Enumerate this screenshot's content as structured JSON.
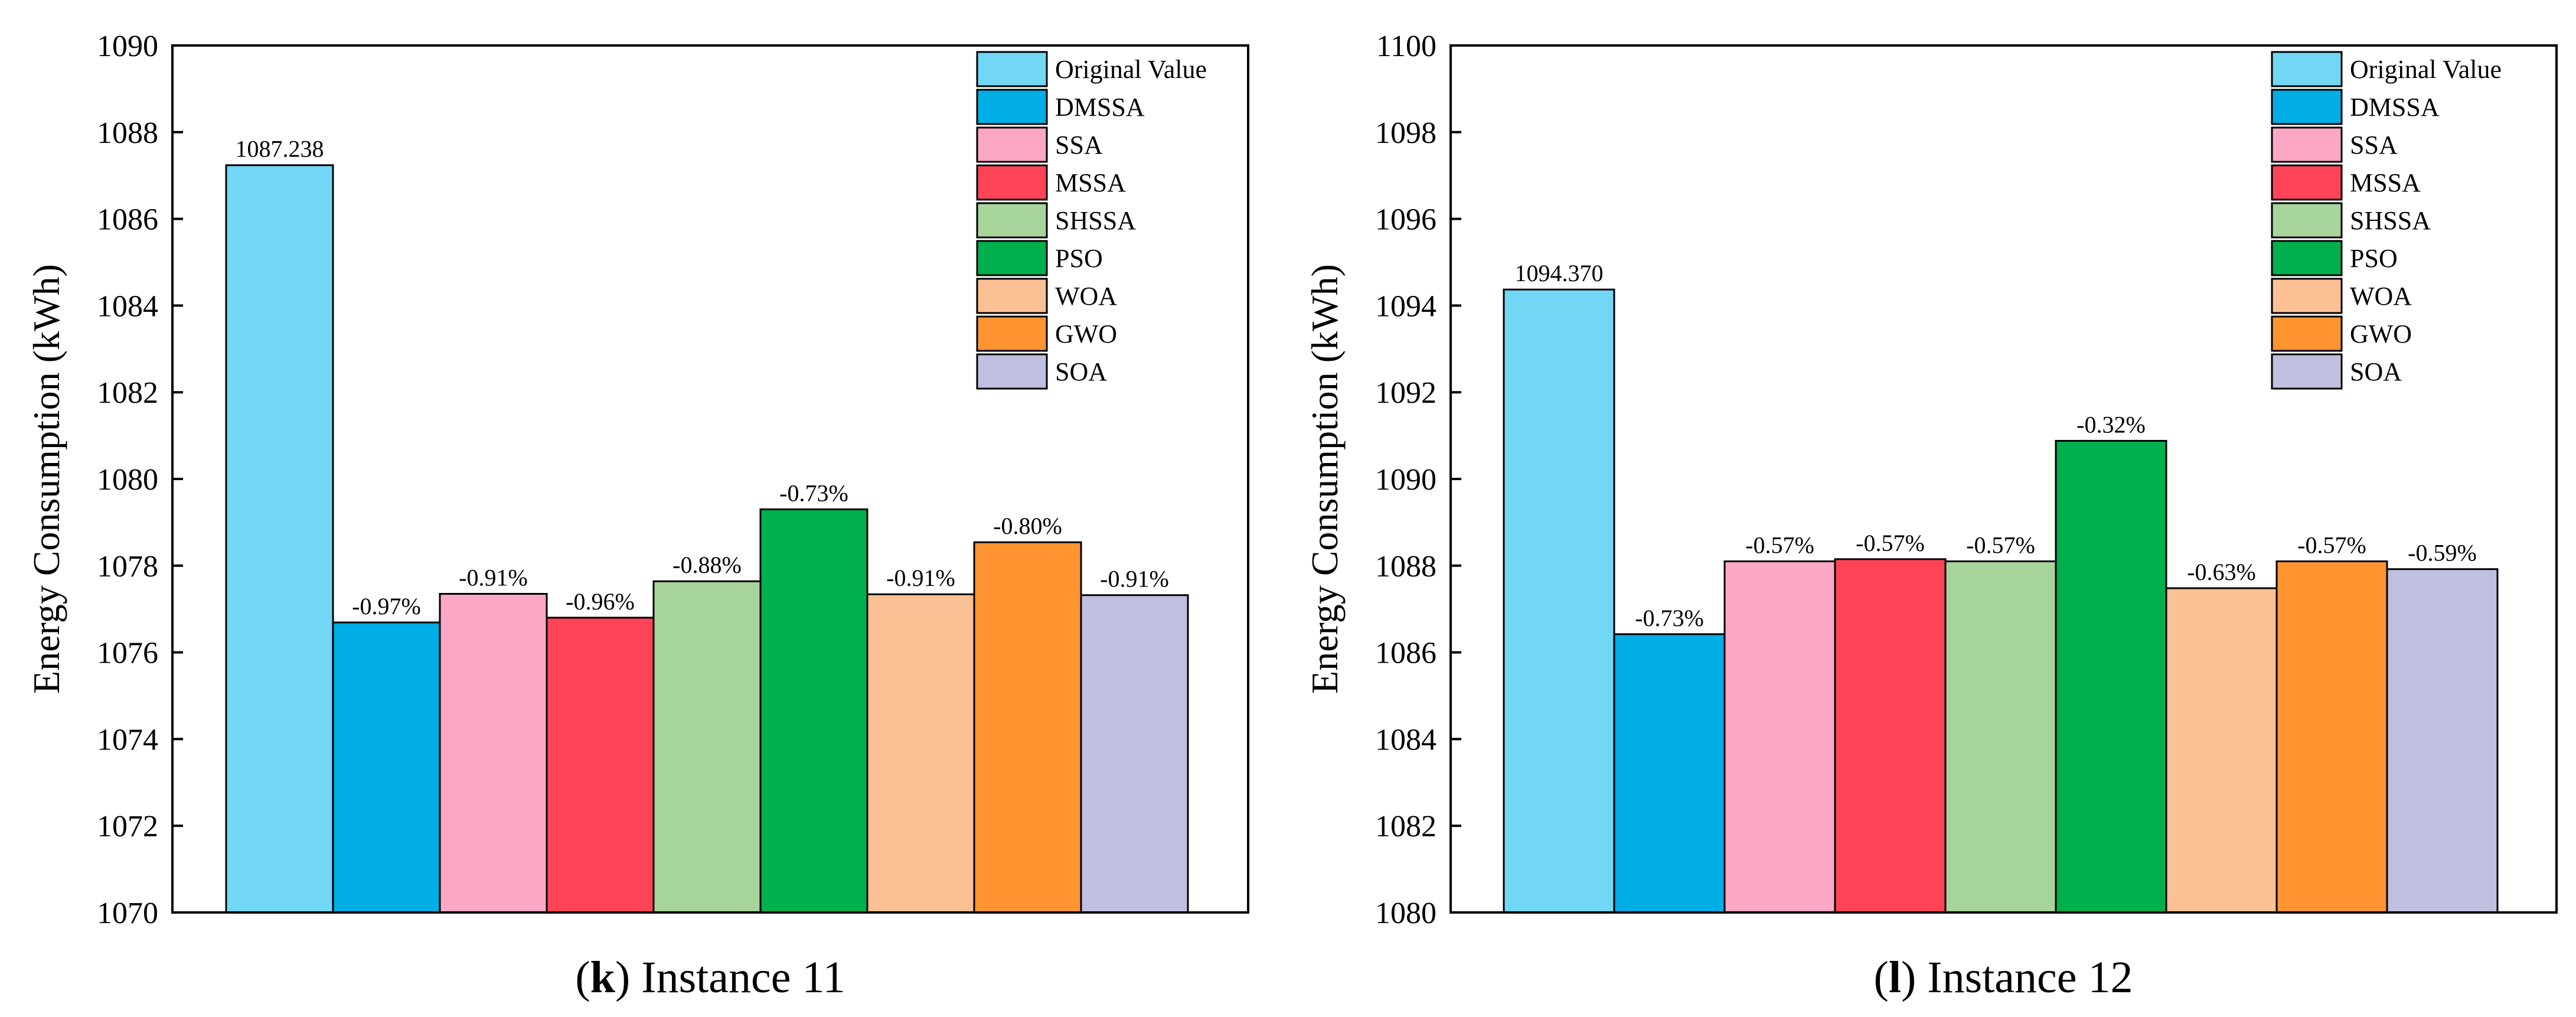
{
  "chart_data": [
    {
      "type": "bar",
      "ylabel": "Energy Consumption (kWh)",
      "xlabel": "",
      "ylim": [
        1070,
        1090
      ],
      "ytick_step": 2,
      "ytick_labels": [
        "1070",
        "1072",
        "1074",
        "1076",
        "1078",
        "1080",
        "1082",
        "1084",
        "1086",
        "1088",
        "1090"
      ],
      "caption_letter": "k",
      "caption_open": "(",
      "caption_close": ") Instance 11",
      "legend_position": "top-right",
      "grid": false,
      "series": [
        {
          "name": "Original Value",
          "value": 1087.238,
          "label": "1087.238",
          "color": "#72D7F5"
        },
        {
          "name": "DMSSA",
          "value": 1076.69,
          "label": "-0.97%",
          "color": "#00AEE6"
        },
        {
          "name": "SSA",
          "value": 1077.35,
          "label": "-0.91%",
          "color": "#FDA7C6"
        },
        {
          "name": "MSSA",
          "value": 1076.8,
          "label": "-0.96%",
          "color": "#FF4457"
        },
        {
          "name": "SHSSA",
          "value": 1077.64,
          "label": "-0.88%",
          "color": "#A7D49A"
        },
        {
          "name": "PSO",
          "value": 1079.3,
          "label": "-0.73%",
          "color": "#00B04C"
        },
        {
          "name": "WOA",
          "value": 1077.34,
          "label": "-0.91%",
          "color": "#FBC093"
        },
        {
          "name": "GWO",
          "value": 1078.54,
          "label": "-0.80%",
          "color": "#FF9430"
        },
        {
          "name": "SOA",
          "value": 1077.32,
          "label": "-0.91%",
          "color": "#BFC0DF"
        }
      ]
    },
    {
      "type": "bar",
      "ylabel": "Energy Consumption (kWh)",
      "xlabel": "",
      "ylim": [
        1080,
        1100
      ],
      "ytick_step": 2,
      "ytick_labels": [
        "1080",
        "1082",
        "1084",
        "1086",
        "1088",
        "1090",
        "1092",
        "1094",
        "1096",
        "1098",
        "1100"
      ],
      "caption_letter": "l",
      "caption_open": "(",
      "caption_close": ") Instance 12",
      "legend_position": "top-right",
      "grid": false,
      "series": [
        {
          "name": "Original Value",
          "value": 1094.37,
          "label": "1094.370",
          "color": "#72D7F5"
        },
        {
          "name": "DMSSA",
          "value": 1086.42,
          "label": "-0.73%",
          "color": "#00AEE6"
        },
        {
          "name": "SSA",
          "value": 1088.1,
          "label": "-0.57%",
          "color": "#FDA7C6"
        },
        {
          "name": "MSSA",
          "value": 1088.15,
          "label": "-0.57%",
          "color": "#FF4457"
        },
        {
          "name": "SHSSA",
          "value": 1088.1,
          "label": "-0.57%",
          "color": "#A7D49A"
        },
        {
          "name": "PSO",
          "value": 1090.88,
          "label": "-0.32%",
          "color": "#00B04C"
        },
        {
          "name": "WOA",
          "value": 1087.48,
          "label": "-0.63%",
          "color": "#FBC093"
        },
        {
          "name": "GWO",
          "value": 1088.1,
          "label": "-0.57%",
          "color": "#FF9430"
        },
        {
          "name": "SOA",
          "value": 1087.92,
          "label": "-0.59%",
          "color": "#BFC0DF"
        }
      ]
    }
  ]
}
